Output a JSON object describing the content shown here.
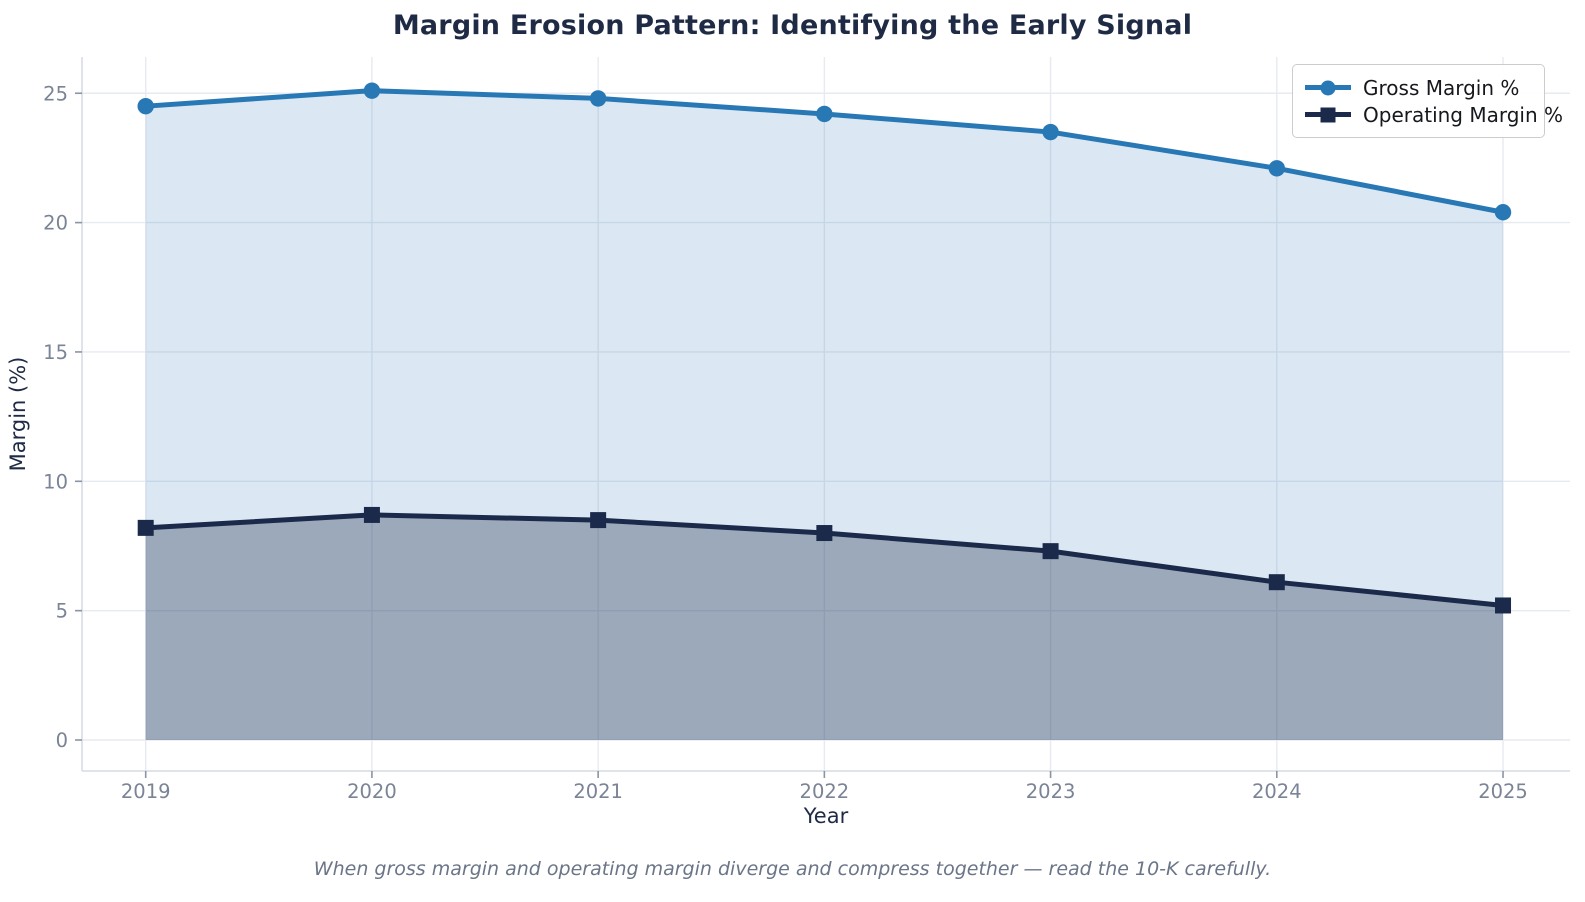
{
  "title": "Margin Erosion Pattern: Identifying the Early Signal",
  "caption": "When gross margin and operating margin diverge and compress together — read the 10-K carefully.",
  "chart_data": {
    "type": "line",
    "title": "Margin Erosion Pattern: Identifying the Early Signal",
    "xlabel": "Year",
    "ylabel": "Margin (%)",
    "x": [
      2019,
      2020,
      2021,
      2022,
      2023,
      2024,
      2025
    ],
    "series": [
      {
        "name": "Gross Margin %",
        "values": [
          24.5,
          25.1,
          24.8,
          24.2,
          23.5,
          22.1,
          20.4
        ],
        "color": "#2878b5",
        "marker": "circle",
        "area_fill": "rgba(43,120,182,0.17)"
      },
      {
        "name": "Operating Margin %",
        "values": [
          8.2,
          8.7,
          8.5,
          8.0,
          7.3,
          6.1,
          5.2
        ],
        "color": "#1b2a4a",
        "marker": "square",
        "area_fill": "rgba(27,42,74,0.33)"
      }
    ],
    "yticks": [
      0,
      5,
      10,
      15,
      20,
      25
    ],
    "ylim": [
      0,
      26.4
    ],
    "grid": true,
    "legend_position": "top-right",
    "annotation": "When gross margin and operating margin diverge and compress together — read the 10-K carefully."
  },
  "colors": {
    "title_text": "#1f2a44",
    "axis_label_text": "#1f2a44",
    "tick_label_text": "#7a8496",
    "gridline": "#e7eaf0",
    "spine": "#d5dae2",
    "tick_mark": "#8a94a4",
    "legend_border": "#cccccc",
    "caption_text": "#6b7588",
    "gross_line": "#2878b5",
    "operating_line": "#1b2a4a"
  }
}
